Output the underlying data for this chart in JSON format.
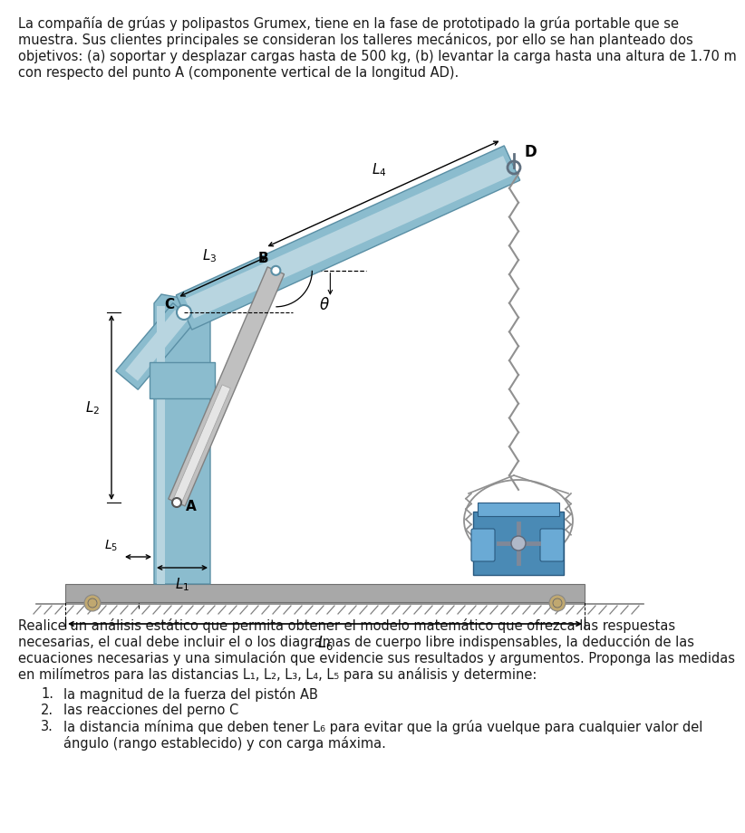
{
  "bg_color": "#FFFFFF",
  "text_color": "#1a1a1a",
  "crane_blue": "#8BBCCE",
  "crane_blue_dark": "#5A8FA5",
  "crane_blue_light": "#B8D5E0",
  "crane_blue_mid": "#7AAFC2",
  "gray_base": "#A8A8A8",
  "gray_base_dark": "#707070",
  "piston_gray": "#C8C8C8",
  "piston_light": "#E8E8E8",
  "load_blue": "#4A8AB5",
  "load_blue_dark": "#2A5A80",
  "load_blue_light": "#6AAAD5",
  "chain_color": "#909090",
  "top_lines": [
    "La compañía de grúas y polipastos Grumex, tiene en la fase de prototipado la grú portable que se",
    "muestra. Sus clientes principales se consideran los talleres mecánicos, por ello se han planteado dos",
    "objetivos: (a) soportar y desplazar cargas hasta de 500 kg, (b) levantar la carga hasta una altura de 1.70 m",
    "con respecto del punto A (componente vertical de la longitud AD)."
  ],
  "bottom_lines": [
    "Realice un análisis estático que permita obtener el modelo matemático que ofrezca las respuestas",
    "necesarias, el cual debe incluir el o los diagramas de cuerpo libre indispensables, la deducción de las",
    "ecuaciones necesarias y una simulación que evidencie sus resultados y argumentos. Proponga las medidas",
    "en milímetros para las distancias L₁, L₂, L₃, L₄, L₅ para su análisis y determine:"
  ],
  "items": [
    "la magnitud de la fuerza del pistón AB",
    "las reacciones del perno C",
    "la distancia mínima que deben tener L₆ para evitar que la grú vuelque para cualquier valor del\nángulo (rango establecido) y con carga máxima."
  ]
}
